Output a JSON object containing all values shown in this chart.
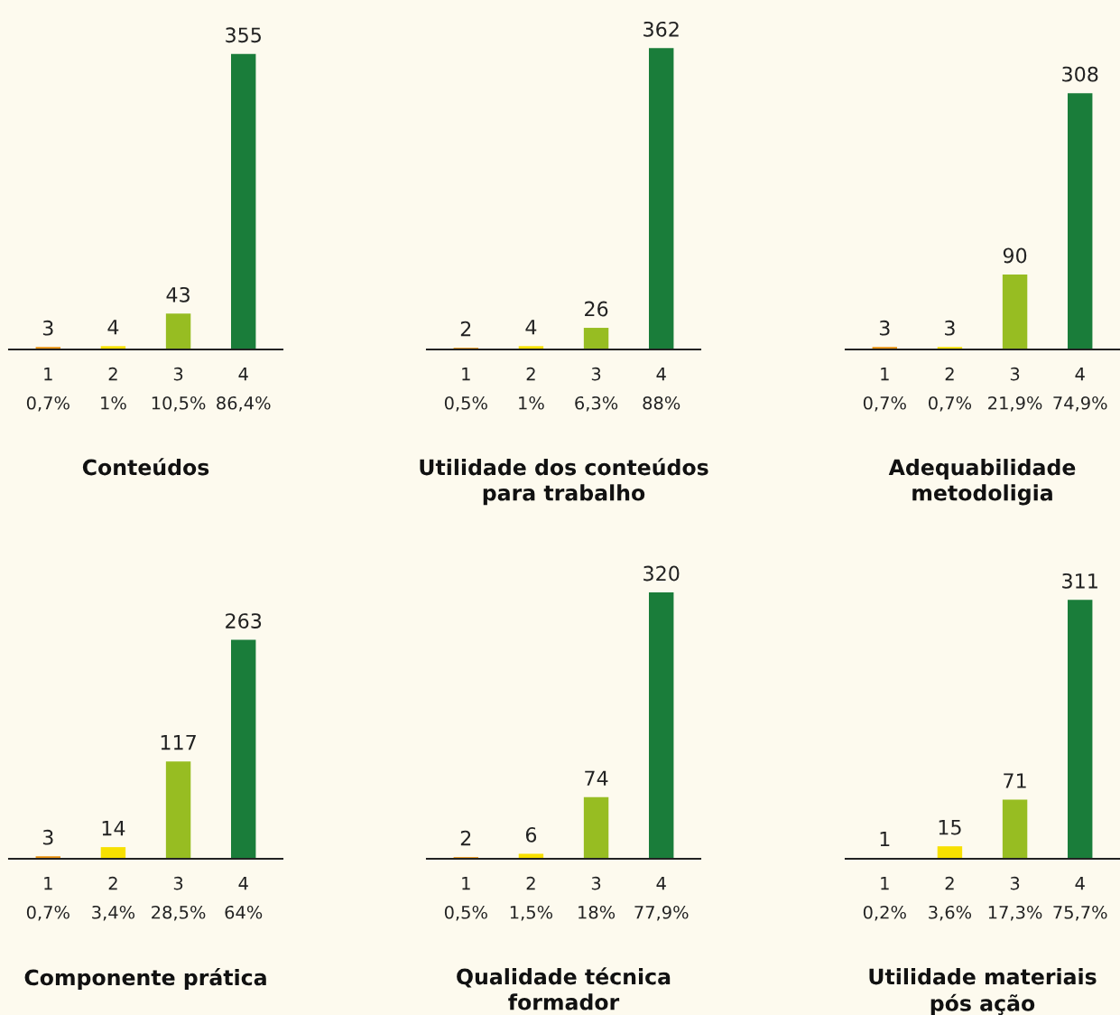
{
  "chart_data": [
    {
      "type": "bar",
      "title": "Conteúdos",
      "categories": [
        "1\n0,7%",
        "2\n1%",
        "3\n10,5%",
        "4\n86,4%"
      ],
      "values": [
        3,
        4,
        43,
        355
      ],
      "colors": [
        "#e8900c",
        "#f7e000",
        "#97bd22",
        "#1a7d3a"
      ],
      "data_labels": true,
      "grid": false,
      "legend": false
    },
    {
      "type": "bar",
      "title": "Utilidade dos conteúdos\npara trabalho",
      "categories": [
        "1\n0,5%",
        "2\n1%",
        "3\n6,3%",
        "4\n88%"
      ],
      "values": [
        2,
        4,
        26,
        362
      ],
      "colors": [
        "#e8900c",
        "#f7e000",
        "#97bd22",
        "#1a7d3a"
      ],
      "data_labels": true,
      "grid": false,
      "legend": false
    },
    {
      "type": "bar",
      "title": "Adequabilidade\nmetodoligia",
      "categories": [
        "1\n0,7%",
        "2\n0,7%",
        "3\n21,9%",
        "4\n74,9%"
      ],
      "values": [
        3,
        3,
        90,
        308
      ],
      "colors": [
        "#e8900c",
        "#f7e000",
        "#97bd22",
        "#1a7d3a"
      ],
      "data_labels": true,
      "grid": false,
      "legend": false
    },
    {
      "type": "bar",
      "title": "Componente prática",
      "categories": [
        "1\n0,7%",
        "2\n3,4%",
        "3\n28,5%",
        "4\n64%"
      ],
      "values": [
        3,
        14,
        117,
        263
      ],
      "colors": [
        "#e8900c",
        "#f7e000",
        "#97bd22",
        "#1a7d3a"
      ],
      "data_labels": true,
      "grid": false,
      "legend": false
    },
    {
      "type": "bar",
      "title": "Qualidade técnica\nformador",
      "categories": [
        "1\n0,5%",
        "2\n1,5%",
        "3\n18%",
        "4\n77,9%"
      ],
      "values": [
        2,
        6,
        74,
        320
      ],
      "colors": [
        "#e8900c",
        "#f7e000",
        "#97bd22",
        "#1a7d3a"
      ],
      "data_labels": true,
      "grid": false,
      "legend": false
    },
    {
      "type": "bar",
      "title": "Utilidade materiais\npós ação",
      "categories": [
        "1\n0,2%",
        "2\n3,6%",
        "3\n17,3%",
        "4\n75,7%"
      ],
      "values": [
        1,
        15,
        71,
        311
      ],
      "colors": [
        "#e8900c",
        "#f7e000",
        "#97bd22",
        "#1a7d3a"
      ],
      "data_labels": true,
      "grid": false,
      "legend": false
    }
  ]
}
